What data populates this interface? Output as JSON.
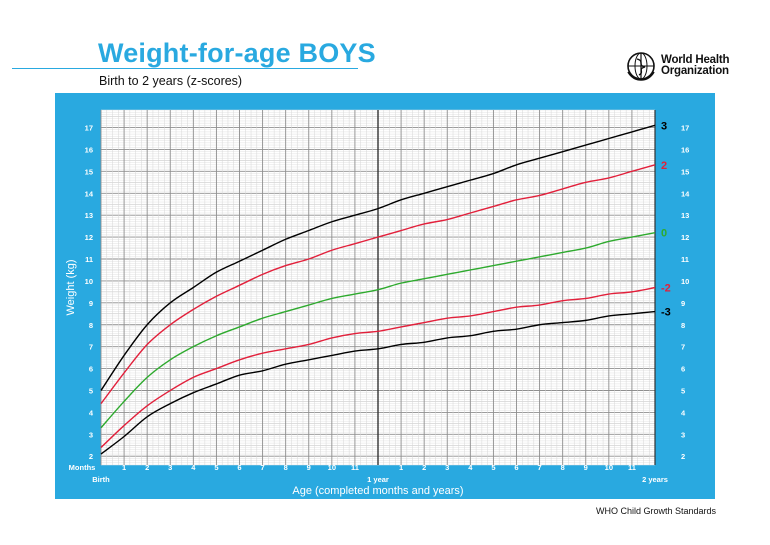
{
  "header": {
    "title": "Weight-for-age BOYS",
    "subtitle": "Birth to 2 years (z-scores)",
    "org_line1": "World Health",
    "org_line2": "Organization"
  },
  "footer": {
    "text": "WHO Child Growth Standards"
  },
  "colors": {
    "panel": "#29a9e0",
    "black": "#000000",
    "red": "#e2203b",
    "green": "#2eaa2e"
  },
  "chart_data": {
    "type": "line",
    "title": "Weight-for-age BOYS",
    "subtitle": "Birth to 2 years (z-scores)",
    "xlabel": "Age (completed months and years)",
    "ylabel": "Weight (kg)",
    "months_label": "Months",
    "xlim": [
      0,
      24
    ],
    "ylim": [
      1.6,
      17.8
    ],
    "x_tick_labels": [
      {
        "x": 0,
        "label": "Birth"
      },
      {
        "x": 1,
        "label": "1"
      },
      {
        "x": 2,
        "label": "2"
      },
      {
        "x": 3,
        "label": "3"
      },
      {
        "x": 4,
        "label": "4"
      },
      {
        "x": 5,
        "label": "5"
      },
      {
        "x": 6,
        "label": "6"
      },
      {
        "x": 7,
        "label": "7"
      },
      {
        "x": 8,
        "label": "8"
      },
      {
        "x": 9,
        "label": "9"
      },
      {
        "x": 10,
        "label": "10"
      },
      {
        "x": 11,
        "label": "11"
      },
      {
        "x": 12,
        "label": "1 year"
      },
      {
        "x": 13,
        "label": "1"
      },
      {
        "x": 14,
        "label": "2"
      },
      {
        "x": 15,
        "label": "3"
      },
      {
        "x": 16,
        "label": "4"
      },
      {
        "x": 17,
        "label": "5"
      },
      {
        "x": 18,
        "label": "6"
      },
      {
        "x": 19,
        "label": "7"
      },
      {
        "x": 20,
        "label": "8"
      },
      {
        "x": 21,
        "label": "9"
      },
      {
        "x": 22,
        "label": "10"
      },
      {
        "x": 23,
        "label": "11"
      },
      {
        "x": 24,
        "label": "2 years"
      }
    ],
    "y_ticks": [
      2,
      3,
      4,
      5,
      6,
      7,
      8,
      9,
      10,
      11,
      12,
      13,
      14,
      15,
      16,
      17
    ],
    "grid": true,
    "x": [
      0,
      1,
      2,
      3,
      4,
      5,
      6,
      7,
      8,
      9,
      10,
      11,
      12,
      13,
      14,
      15,
      16,
      17,
      18,
      19,
      20,
      21,
      22,
      23,
      24
    ],
    "series": [
      {
        "name": "3",
        "color": "#000000",
        "values": [
          5.0,
          6.6,
          8.0,
          9.0,
          9.7,
          10.4,
          10.9,
          11.4,
          11.9,
          12.3,
          12.7,
          13.0,
          13.3,
          13.7,
          14.0,
          14.3,
          14.6,
          14.9,
          15.3,
          15.6,
          15.9,
          16.2,
          16.5,
          16.8,
          17.1
        ]
      },
      {
        "name": "2",
        "color": "#e2203b",
        "values": [
          4.4,
          5.8,
          7.1,
          8.0,
          8.7,
          9.3,
          9.8,
          10.3,
          10.7,
          11.0,
          11.4,
          11.7,
          12.0,
          12.3,
          12.6,
          12.8,
          13.1,
          13.4,
          13.7,
          13.9,
          14.2,
          14.5,
          14.7,
          15.0,
          15.3
        ]
      },
      {
        "name": "0",
        "color": "#2eaa2e",
        "values": [
          3.3,
          4.5,
          5.6,
          6.4,
          7.0,
          7.5,
          7.9,
          8.3,
          8.6,
          8.9,
          9.2,
          9.4,
          9.6,
          9.9,
          10.1,
          10.3,
          10.5,
          10.7,
          10.9,
          11.1,
          11.3,
          11.5,
          11.8,
          12.0,
          12.2
        ]
      },
      {
        "name": "-2",
        "color": "#e2203b",
        "values": [
          2.4,
          3.4,
          4.3,
          5.0,
          5.6,
          6.0,
          6.4,
          6.7,
          6.9,
          7.1,
          7.4,
          7.6,
          7.7,
          7.9,
          8.1,
          8.3,
          8.4,
          8.6,
          8.8,
          8.9,
          9.1,
          9.2,
          9.4,
          9.5,
          9.7
        ]
      },
      {
        "name": "-3",
        "color": "#000000",
        "values": [
          2.1,
          2.9,
          3.8,
          4.4,
          4.9,
          5.3,
          5.7,
          5.9,
          6.2,
          6.4,
          6.6,
          6.8,
          6.9,
          7.1,
          7.2,
          7.4,
          7.5,
          7.7,
          7.8,
          8.0,
          8.1,
          8.2,
          8.4,
          8.5,
          8.6
        ]
      }
    ]
  }
}
